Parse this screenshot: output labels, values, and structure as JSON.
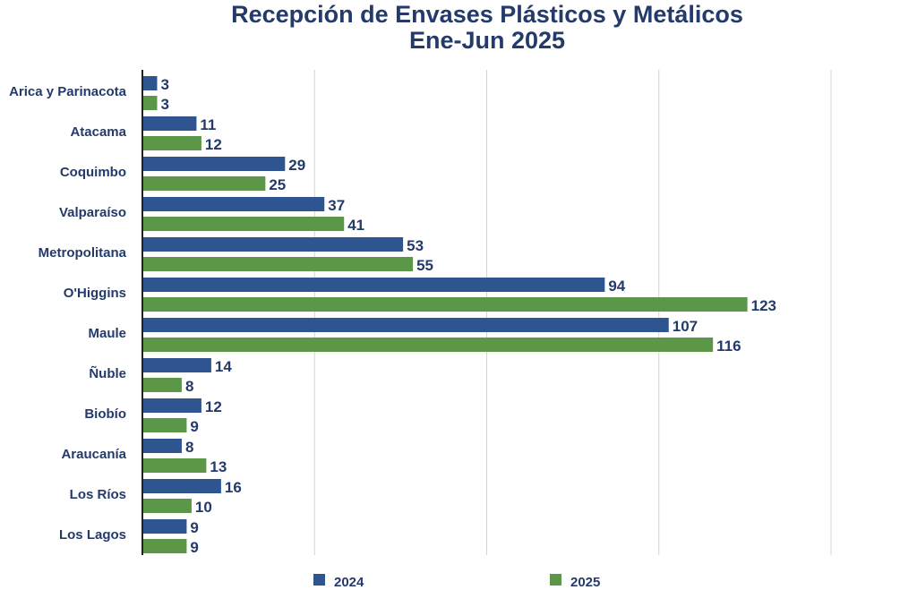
{
  "chart_data": {
    "type": "bar",
    "orientation": "horizontal",
    "title": "Recepción de Envases Plásticos y Metálicos",
    "subtitle": "Ene-Jun 2025",
    "categories": [
      "Arica y Parinacota",
      "Atacama",
      "Coquimbo",
      "Valparaíso",
      "Metropolitana",
      "O'Higgins",
      "Maule",
      "Ñuble",
      "Biobío",
      "Araucanía",
      "Los Ríos",
      "Los Lagos"
    ],
    "series": [
      {
        "name": "2024",
        "color": "#2e5590",
        "values": [
          3,
          11,
          29,
          37,
          53,
          94,
          107,
          14,
          12,
          8,
          16,
          9
        ]
      },
      {
        "name": "2025",
        "color": "#5c9647",
        "values": [
          3,
          12,
          25,
          41,
          55,
          123,
          116,
          8,
          9,
          13,
          10,
          9
        ]
      }
    ],
    "xlim": [
      0,
      140
    ],
    "x_grid_step": 35,
    "grid": true,
    "legend": "bottom",
    "xlabel": "",
    "ylabel": ""
  }
}
